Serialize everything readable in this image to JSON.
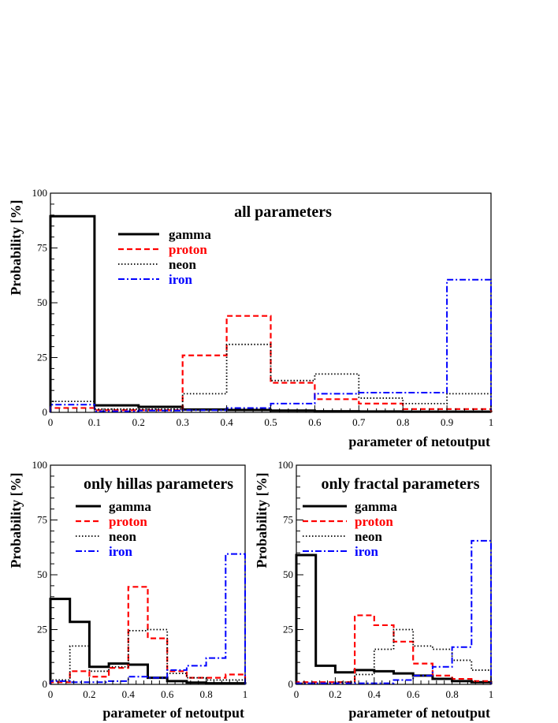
{
  "chart_data": [
    {
      "type": "histogram",
      "title": "all parameters",
      "xlabel": "parameter of netoutput",
      "ylabel": "Probability [%]",
      "xlim": [
        0,
        1
      ],
      "ylim": [
        0,
        100
      ],
      "xticks": [
        "0",
        "0.1",
        "0.2",
        "0.3",
        "0.4",
        "0.5",
        "0.6",
        "0.7",
        "0.8",
        "0.9",
        "1"
      ],
      "yticks": [
        "0",
        "25",
        "50",
        "75",
        "100"
      ],
      "bin_edges": [
        0,
        0.1,
        0.2,
        0.3,
        0.4,
        0.5,
        0.6,
        0.7,
        0.8,
        0.9,
        1.0
      ],
      "series": [
        {
          "name": "gamma",
          "color": "#000000",
          "dash": "solid",
          "values": [
            89.5,
            3.2,
            2.5,
            1.3,
            1.1,
            0.8,
            0.5,
            0.4,
            0.3,
            0.3
          ]
        },
        {
          "name": "proton",
          "color": "#ff0000",
          "dash": "dashed",
          "values": [
            2.0,
            1.0,
            1.0,
            26.0,
            44.0,
            13.5,
            6.0,
            4.0,
            1.5,
            1.5
          ]
        },
        {
          "name": "neon",
          "color": "#000000",
          "dash": "dotted",
          "values": [
            5.0,
            1.5,
            1.5,
            8.5,
            31.0,
            14.5,
            17.5,
            6.5,
            4.0,
            8.5
          ]
        },
        {
          "name": "iron",
          "color": "#0000ff",
          "dash": "dashdot",
          "values": [
            3.5,
            0.5,
            0.8,
            1.0,
            2.0,
            4.0,
            8.5,
            9.0,
            9.0,
            60.5
          ]
        }
      ]
    },
    {
      "type": "histogram",
      "title": "only hillas parameters",
      "xlabel": "parameter of netoutput",
      "ylabel": "Probability [%]",
      "xlim": [
        0,
        1
      ],
      "ylim": [
        0,
        100
      ],
      "xticks": [
        "0",
        "0.2",
        "0.4",
        "0.6",
        "0.8",
        "1"
      ],
      "yticks": [
        "0",
        "25",
        "50",
        "75",
        "100"
      ],
      "bin_edges": [
        0,
        0.1,
        0.2,
        0.3,
        0.4,
        0.5,
        0.6,
        0.7,
        0.8,
        0.9,
        1.0
      ],
      "series": [
        {
          "name": "gamma",
          "color": "#000000",
          "dash": "solid",
          "values": [
            39,
            28.5,
            8,
            9.5,
            9,
            3,
            1.5,
            0.8,
            0.5,
            0.5
          ]
        },
        {
          "name": "proton",
          "color": "#ff0000",
          "dash": "dashed",
          "values": [
            1,
            6,
            3.5,
            7.5,
            44.5,
            21,
            6,
            3,
            3,
            4.5
          ]
        },
        {
          "name": "neon",
          "color": "#000000",
          "dash": "dotted",
          "values": [
            2,
            17.5,
            6,
            8,
            24.5,
            25,
            5,
            3,
            2,
            2
          ]
        },
        {
          "name": "iron",
          "color": "#0000ff",
          "dash": "dashdot",
          "values": [
            1.5,
            1,
            1,
            1.5,
            3.5,
            3,
            6.5,
            8.5,
            12,
            59.5
          ]
        }
      ]
    },
    {
      "type": "histogram",
      "title": "only fractal parameters",
      "xlabel": "parameter of netoutput",
      "ylabel": "Probability [%]",
      "xlim": [
        0,
        1
      ],
      "ylim": [
        0,
        100
      ],
      "xticks": [
        "0",
        "0.2",
        "0.4",
        "0.6",
        "0.8",
        "1"
      ],
      "yticks": [
        "0",
        "25",
        "50",
        "75",
        "100"
      ],
      "bin_edges": [
        0,
        0.1,
        0.2,
        0.3,
        0.4,
        0.5,
        0.6,
        0.7,
        0.8,
        0.9,
        1.0
      ],
      "series": [
        {
          "name": "gamma",
          "color": "#000000",
          "dash": "solid",
          "values": [
            59,
            8.5,
            5.5,
            6.5,
            6,
            5,
            4,
            2.5,
            1.5,
            1
          ]
        },
        {
          "name": "proton",
          "color": "#ff0000",
          "dash": "dashed",
          "values": [
            1,
            1,
            1,
            31.5,
            27,
            19.5,
            9.5,
            4,
            2.5,
            1.5
          ]
        },
        {
          "name": "neon",
          "color": "#000000",
          "dash": "dotted",
          "values": [
            0.5,
            0.5,
            1,
            4.5,
            16,
            25,
            17.5,
            16,
            11,
            6.5
          ]
        },
        {
          "name": "iron",
          "color": "#0000ff",
          "dash": "dashdot",
          "values": [
            0.5,
            0.5,
            0.5,
            0.5,
            0.5,
            2,
            4,
            8,
            17,
            65.5
          ]
        }
      ]
    }
  ]
}
